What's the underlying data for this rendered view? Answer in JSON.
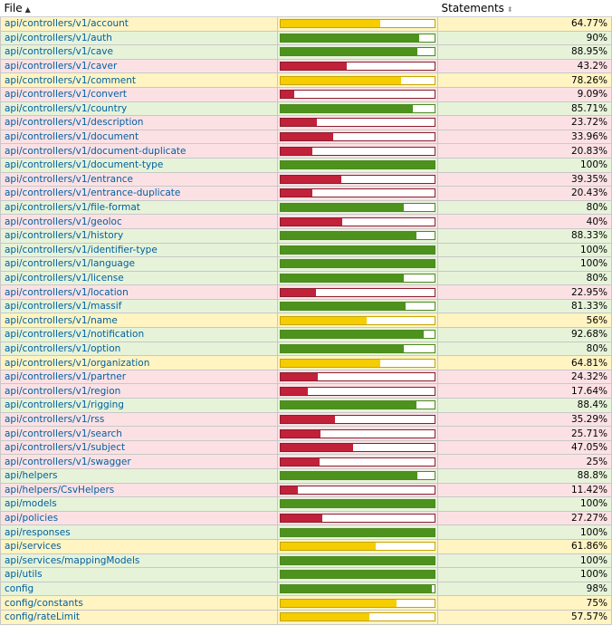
{
  "header": {
    "file_label": "File",
    "statements_label": "Statements",
    "file_sort_icon": "sort-asc-icon",
    "statements_sort_icon": "sort-both-icon"
  },
  "colors": {
    "high_bg": "#e6f3d9",
    "medium_bg": "#fff4c2",
    "low_bg": "#fce1e4",
    "high_bar": "#4d921d",
    "medium_bar": "#f5cd00",
    "low_bar": "#c2213a",
    "link": "#0060a0"
  },
  "rows": [
    {
      "file": "api/controllers/v1/account",
      "pct": "64.77%",
      "value": 64.77,
      "level": "medium"
    },
    {
      "file": "api/controllers/v1/auth",
      "pct": "90%",
      "value": 90,
      "level": "high"
    },
    {
      "file": "api/controllers/v1/cave",
      "pct": "88.95%",
      "value": 88.95,
      "level": "high"
    },
    {
      "file": "api/controllers/v1/caver",
      "pct": "43.2%",
      "value": 43.2,
      "level": "low"
    },
    {
      "file": "api/controllers/v1/comment",
      "pct": "78.26%",
      "value": 78.26,
      "level": "medium"
    },
    {
      "file": "api/controllers/v1/convert",
      "pct": "9.09%",
      "value": 9.09,
      "level": "low"
    },
    {
      "file": "api/controllers/v1/country",
      "pct": "85.71%",
      "value": 85.71,
      "level": "high"
    },
    {
      "file": "api/controllers/v1/description",
      "pct": "23.72%",
      "value": 23.72,
      "level": "low"
    },
    {
      "file": "api/controllers/v1/document",
      "pct": "33.96%",
      "value": 33.96,
      "level": "low"
    },
    {
      "file": "api/controllers/v1/document-duplicate",
      "pct": "20.83%",
      "value": 20.83,
      "level": "low"
    },
    {
      "file": "api/controllers/v1/document-type",
      "pct": "100%",
      "value": 100,
      "level": "high"
    },
    {
      "file": "api/controllers/v1/entrance",
      "pct": "39.35%",
      "value": 39.35,
      "level": "low"
    },
    {
      "file": "api/controllers/v1/entrance-duplicate",
      "pct": "20.43%",
      "value": 20.43,
      "level": "low"
    },
    {
      "file": "api/controllers/v1/file-format",
      "pct": "80%",
      "value": 80,
      "level": "high"
    },
    {
      "file": "api/controllers/v1/geoloc",
      "pct": "40%",
      "value": 40,
      "level": "low"
    },
    {
      "file": "api/controllers/v1/history",
      "pct": "88.33%",
      "value": 88.33,
      "level": "high"
    },
    {
      "file": "api/controllers/v1/identifier-type",
      "pct": "100%",
      "value": 100,
      "level": "high"
    },
    {
      "file": "api/controllers/v1/language",
      "pct": "100%",
      "value": 100,
      "level": "high"
    },
    {
      "file": "api/controllers/v1/license",
      "pct": "80%",
      "value": 80,
      "level": "high"
    },
    {
      "file": "api/controllers/v1/location",
      "pct": "22.95%",
      "value": 22.95,
      "level": "low"
    },
    {
      "file": "api/controllers/v1/massif",
      "pct": "81.33%",
      "value": 81.33,
      "level": "high"
    },
    {
      "file": "api/controllers/v1/name",
      "pct": "56%",
      "value": 56,
      "level": "medium"
    },
    {
      "file": "api/controllers/v1/notification",
      "pct": "92.68%",
      "value": 92.68,
      "level": "high"
    },
    {
      "file": "api/controllers/v1/option",
      "pct": "80%",
      "value": 80,
      "level": "high"
    },
    {
      "file": "api/controllers/v1/organization",
      "pct": "64.81%",
      "value": 64.81,
      "level": "medium"
    },
    {
      "file": "api/controllers/v1/partner",
      "pct": "24.32%",
      "value": 24.32,
      "level": "low"
    },
    {
      "file": "api/controllers/v1/region",
      "pct": "17.64%",
      "value": 17.64,
      "level": "low"
    },
    {
      "file": "api/controllers/v1/rigging",
      "pct": "88.4%",
      "value": 88.4,
      "level": "high"
    },
    {
      "file": "api/controllers/v1/rss",
      "pct": "35.29%",
      "value": 35.29,
      "level": "low"
    },
    {
      "file": "api/controllers/v1/search",
      "pct": "25.71%",
      "value": 25.71,
      "level": "low"
    },
    {
      "file": "api/controllers/v1/subject",
      "pct": "47.05%",
      "value": 47.05,
      "level": "low"
    },
    {
      "file": "api/controllers/v1/swagger",
      "pct": "25%",
      "value": 25,
      "level": "low"
    },
    {
      "file": "api/helpers",
      "pct": "88.8%",
      "value": 88.8,
      "level": "high"
    },
    {
      "file": "api/helpers/CsvHelpers",
      "pct": "11.42%",
      "value": 11.42,
      "level": "low"
    },
    {
      "file": "api/models",
      "pct": "100%",
      "value": 100,
      "level": "high"
    },
    {
      "file": "api/policies",
      "pct": "27.27%",
      "value": 27.27,
      "level": "low"
    },
    {
      "file": "api/responses",
      "pct": "100%",
      "value": 100,
      "level": "high"
    },
    {
      "file": "api/services",
      "pct": "61.86%",
      "value": 61.86,
      "level": "medium"
    },
    {
      "file": "api/services/mappingModels",
      "pct": "100%",
      "value": 100,
      "level": "high"
    },
    {
      "file": "api/utils",
      "pct": "100%",
      "value": 100,
      "level": "high"
    },
    {
      "file": "config",
      "pct": "98%",
      "value": 98,
      "level": "high"
    },
    {
      "file": "config/constants",
      "pct": "75%",
      "value": 75,
      "level": "medium"
    },
    {
      "file": "config/rateLimit",
      "pct": "57.57%",
      "value": 57.57,
      "level": "medium"
    }
  ]
}
